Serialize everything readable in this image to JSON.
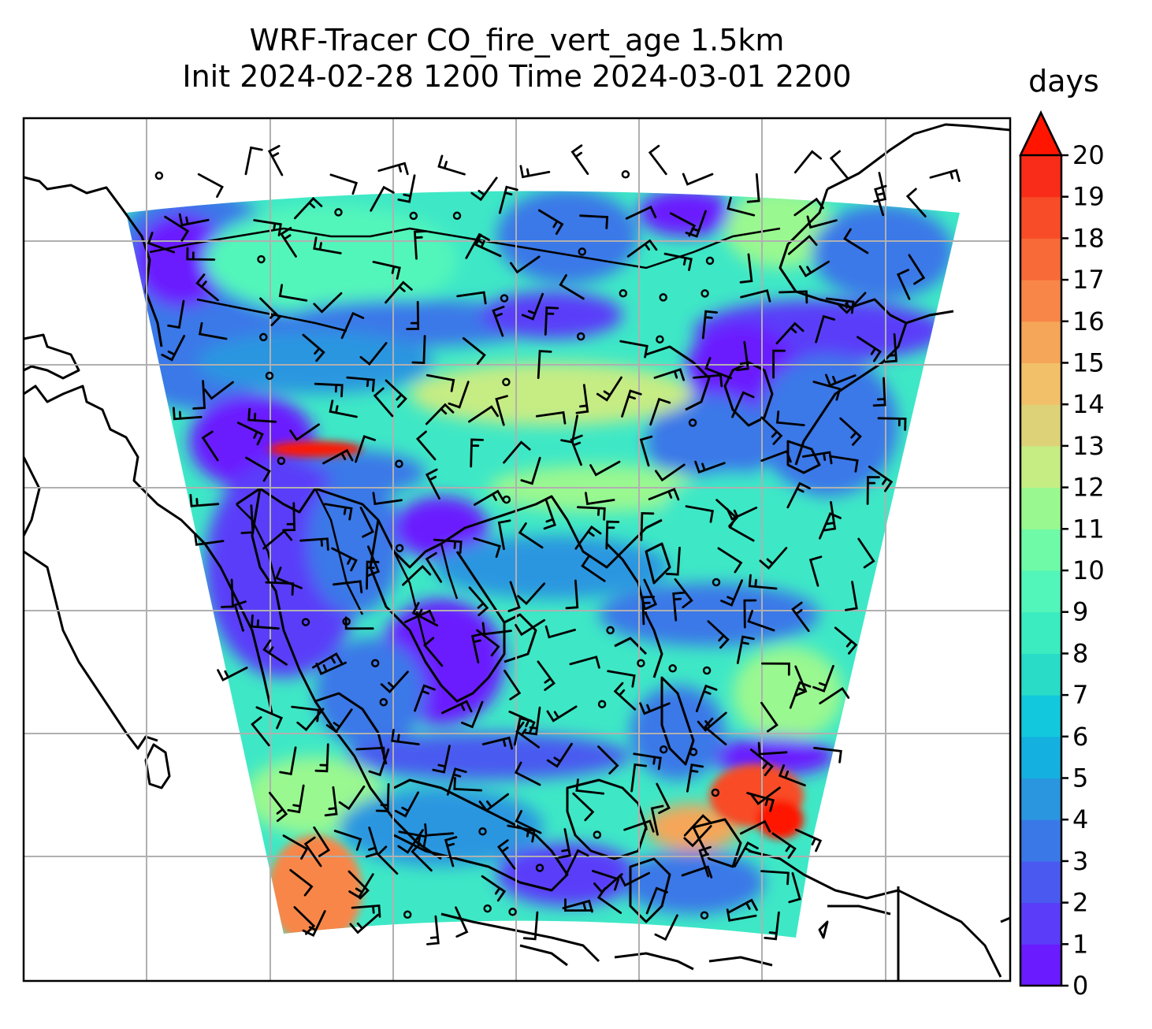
{
  "title": {
    "line1": "WRF-Tracer CO_fire_vert_age 1.5km",
    "line2": "Init 2024-02-28 1200 Time 2024-03-01 2200"
  },
  "colorbar": {
    "unit": "days",
    "min": 0,
    "max": 20,
    "step": 1,
    "extend": "max",
    "ticks": [
      "0",
      "1",
      "2",
      "3",
      "4",
      "5",
      "6",
      "7",
      "8",
      "9",
      "10",
      "11",
      "12",
      "13",
      "14",
      "15",
      "16",
      "17",
      "18",
      "19",
      "20"
    ],
    "colors": [
      "#6a1bff",
      "#5a3cf9",
      "#4a5af0",
      "#3a78e8",
      "#2a96e0",
      "#14b0e0",
      "#12c8dc",
      "#28dcc8",
      "#3aecc0",
      "#52f6ba",
      "#6efaa6",
      "#9af890",
      "#c6ec84",
      "#ddd278",
      "#f2c068",
      "#f6a658",
      "#f88648",
      "#f86a38",
      "#f84c28",
      "#f82c18"
    ],
    "extend_color": "#ff1500"
  },
  "map": {
    "projection": "Lambert conformal (WRF domain)",
    "gridlines": true,
    "overlays": [
      "fire CO tracer age shading (days)",
      "wind barbs",
      "coastlines",
      "country borders"
    ]
  }
}
